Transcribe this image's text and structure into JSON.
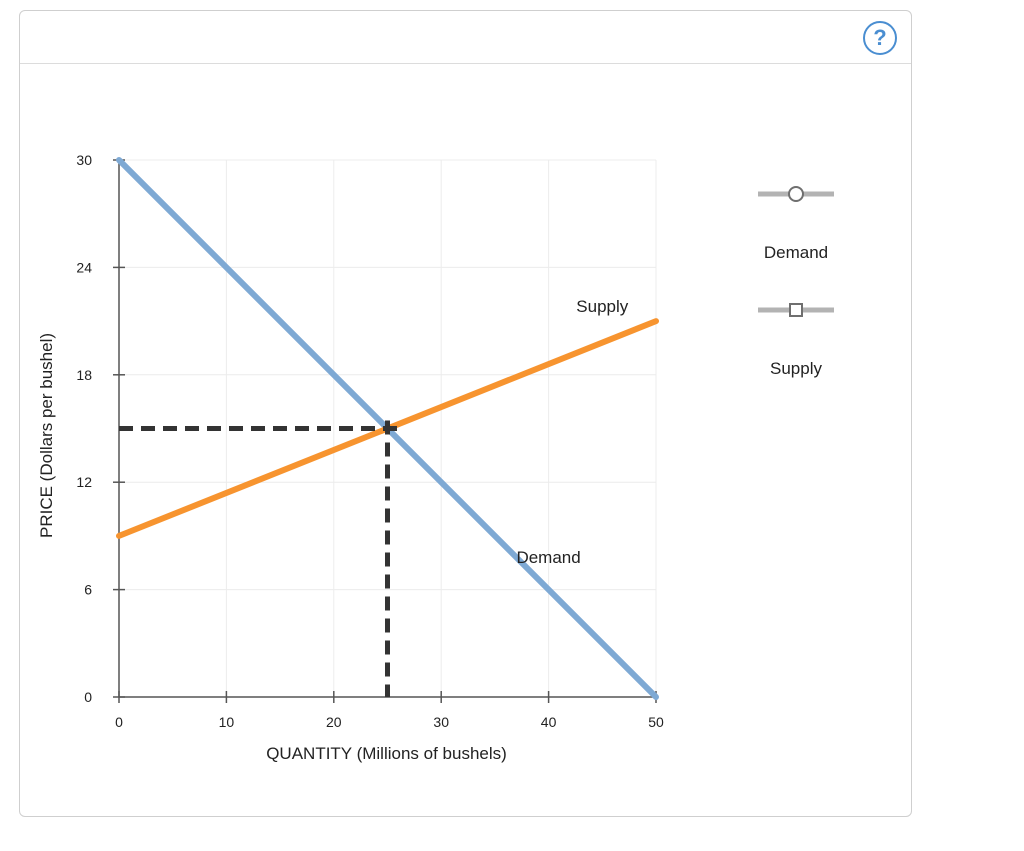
{
  "panel": {
    "help_label": "?"
  },
  "legend": [
    {
      "label": "Demand",
      "marker": "circle",
      "color": "#b3b3b3"
    },
    {
      "label": "Supply",
      "marker": "square",
      "color": "#b3b3b3"
    }
  ],
  "chart_data": {
    "type": "line",
    "xlabel": "QUANTITY (Millions of bushels)",
    "ylabel": "PRICE (Dollars per bushel)",
    "xlim": [
      0,
      50
    ],
    "ylim": [
      0,
      30
    ],
    "xticks": [
      0,
      10,
      20,
      30,
      40,
      50
    ],
    "yticks": [
      0,
      6,
      12,
      18,
      24,
      30
    ],
    "grid": true,
    "series": [
      {
        "name": "Demand",
        "color": "#7ea9d4",
        "points": [
          [
            0,
            30
          ],
          [
            50,
            0
          ]
        ]
      },
      {
        "name": "Supply",
        "color": "#f7942f",
        "points": [
          [
            0,
            9
          ],
          [
            50,
            21
          ]
        ]
      }
    ],
    "equilibrium": {
      "x": 25,
      "y": 15,
      "color": "#333333"
    },
    "annotations": [
      {
        "text": "Supply",
        "x": 45,
        "y": 21.5
      },
      {
        "text": "Demand",
        "x": 40,
        "y": 7.5
      }
    ]
  }
}
